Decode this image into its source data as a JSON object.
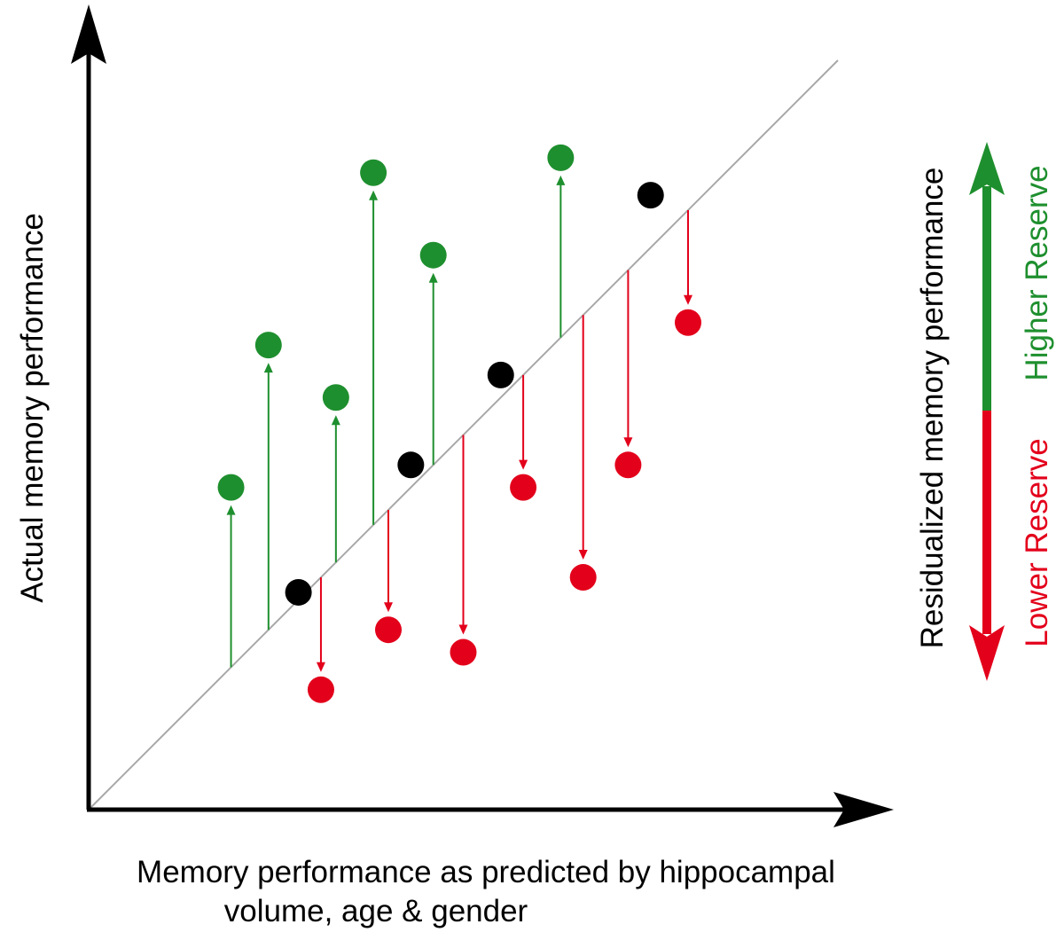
{
  "labels": {
    "y_axis": "Actual memory performance",
    "x_axis_line1": "Memory performance as predicted by hippocampal",
    "x_axis_line2": "volume, age & gender",
    "residual_axis": "Residualized memory performance",
    "higher": "Higher Reserve",
    "lower": "Lower Reserve"
  },
  "colors": {
    "axis": "#000000",
    "identity_line": "#a8a8a8",
    "higher": "#1e8f2e",
    "lower": "#e3001b",
    "on_line": "#000000"
  },
  "chart_data": {
    "type": "scatter",
    "note_free": true,
    "xlim": [
      0,
      100
    ],
    "ylim": [
      0,
      100
    ],
    "identity_line": true,
    "points": [
      {
        "x": 19,
        "y": 43,
        "group": "higher"
      },
      {
        "x": 24,
        "y": 62,
        "group": "higher"
      },
      {
        "x": 28,
        "y": 29,
        "group": "on_line"
      },
      {
        "x": 31,
        "y": 16,
        "group": "lower"
      },
      {
        "x": 33,
        "y": 55,
        "group": "higher"
      },
      {
        "x": 38,
        "y": 85,
        "group": "higher"
      },
      {
        "x": 40,
        "y": 24,
        "group": "lower"
      },
      {
        "x": 43,
        "y": 46,
        "group": "on_line"
      },
      {
        "x": 46,
        "y": 74,
        "group": "higher"
      },
      {
        "x": 50,
        "y": 21,
        "group": "lower"
      },
      {
        "x": 55,
        "y": 58,
        "group": "on_line"
      },
      {
        "x": 58,
        "y": 43,
        "group": "lower"
      },
      {
        "x": 63,
        "y": 87,
        "group": "higher"
      },
      {
        "x": 66,
        "y": 31,
        "group": "lower"
      },
      {
        "x": 72,
        "y": 46,
        "group": "lower"
      },
      {
        "x": 75,
        "y": 82,
        "group": "on_line"
      },
      {
        "x": 80,
        "y": 65,
        "group": "lower"
      }
    ]
  }
}
